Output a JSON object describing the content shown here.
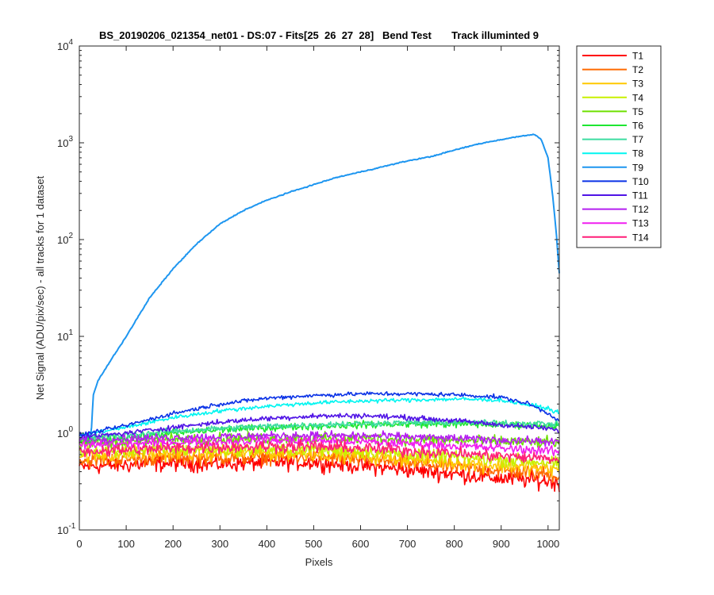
{
  "chart_data": {
    "type": "line",
    "title": "BS_20190206_021354_net01 - DS:07 - Fits[25  26  27  28]   Bend Test       Track illuminted 9",
    "xlabel": "Pixels",
    "ylabel": "Net Signal (ADU/pix/sec) - all tracks for 1 dataset",
    "x_scale": "linear",
    "y_scale": "log",
    "xlim": [
      0,
      1024
    ],
    "ylim": [
      0.1,
      10000
    ],
    "x_ticks": [
      0,
      100,
      200,
      300,
      400,
      500,
      600,
      700,
      800,
      900,
      1000
    ],
    "x_tick_labels": [
      "0",
      "100",
      "200",
      "300",
      "400",
      "500",
      "600",
      "700",
      "800",
      "900",
      "1000"
    ],
    "y_ticks": [
      {
        "value": 0.1,
        "base": "10",
        "exp": "-1"
      },
      {
        "value": 1,
        "base": "10",
        "exp": "0"
      },
      {
        "value": 10,
        "base": "10",
        "exp": "1"
      },
      {
        "value": 100,
        "base": "10",
        "exp": "2"
      },
      {
        "value": 1000,
        "base": "10",
        "exp": "3"
      },
      {
        "value": 10000,
        "base": "10",
        "exp": "4"
      }
    ],
    "grid": false,
    "legend_position": "outside-top-right",
    "series": [
      {
        "name": "T1",
        "color": "#ff0000",
        "noise": 0.16,
        "x": [
          0,
          100,
          200,
          300,
          400,
          500,
          600,
          700,
          800,
          900,
          1000,
          1024
        ],
        "y": [
          0.45,
          0.47,
          0.49,
          0.48,
          0.5,
          0.5,
          0.46,
          0.42,
          0.38,
          0.34,
          0.32,
          0.3
        ]
      },
      {
        "name": "T2",
        "color": "#ff6a00",
        "noise": 0.15,
        "x": [
          0,
          100,
          200,
          300,
          400,
          500,
          600,
          700,
          800,
          900,
          1000,
          1024
        ],
        "y": [
          0.52,
          0.54,
          0.56,
          0.56,
          0.57,
          0.57,
          0.53,
          0.49,
          0.45,
          0.41,
          0.38,
          0.36
        ]
      },
      {
        "name": "T3",
        "color": "#ffc800",
        "noise": 0.14,
        "x": [
          0,
          100,
          200,
          300,
          400,
          500,
          600,
          700,
          800,
          900,
          1000,
          1024
        ],
        "y": [
          0.58,
          0.6,
          0.62,
          0.62,
          0.62,
          0.62,
          0.58,
          0.54,
          0.5,
          0.46,
          0.43,
          0.41
        ]
      },
      {
        "name": "T4",
        "color": "#c8f000",
        "noise": 0.13,
        "x": [
          0,
          100,
          200,
          300,
          400,
          500,
          600,
          700,
          800,
          900,
          1000,
          1024
        ],
        "y": [
          0.64,
          0.66,
          0.68,
          0.68,
          0.68,
          0.68,
          0.65,
          0.61,
          0.57,
          0.53,
          0.5,
          0.48
        ]
      },
      {
        "name": "T5",
        "color": "#6ee000",
        "noise": 0.11,
        "x": [
          0,
          100,
          200,
          300,
          400,
          500,
          600,
          700,
          800,
          900,
          1000,
          1024
        ],
        "y": [
          0.78,
          0.82,
          0.86,
          0.88,
          0.88,
          0.88,
          0.88,
          0.86,
          0.84,
          0.82,
          0.8,
          0.8
        ]
      },
      {
        "name": "T6",
        "color": "#1ee632",
        "noise": 0.07,
        "x": [
          0,
          100,
          200,
          300,
          400,
          500,
          600,
          700,
          800,
          900,
          1000,
          1024
        ],
        "y": [
          0.82,
          0.9,
          1.0,
          1.08,
          1.14,
          1.18,
          1.22,
          1.24,
          1.24,
          1.22,
          1.2,
          1.2
        ]
      },
      {
        "name": "T7",
        "color": "#3cdca0",
        "noise": 0.06,
        "x": [
          0,
          100,
          200,
          300,
          400,
          500,
          600,
          700,
          800,
          900,
          1000,
          1024
        ],
        "y": [
          0.88,
          0.95,
          1.05,
          1.12,
          1.18,
          1.22,
          1.26,
          1.28,
          1.29,
          1.28,
          1.25,
          1.24
        ]
      },
      {
        "name": "T8",
        "color": "#00f5f0",
        "noise": 0.04,
        "x": [
          0,
          100,
          200,
          300,
          400,
          500,
          600,
          700,
          800,
          900,
          1000,
          1024
        ],
        "y": [
          0.95,
          1.15,
          1.45,
          1.7,
          1.9,
          2.05,
          2.15,
          2.2,
          2.25,
          2.2,
          1.8,
          1.6
        ]
      },
      {
        "name": "T9",
        "color": "#1e96f0",
        "noise": 0.01,
        "x": [
          0,
          25,
          30,
          40,
          60,
          100,
          150,
          200,
          250,
          300,
          350,
          400,
          450,
          500,
          550,
          600,
          650,
          700,
          750,
          800,
          850,
          900,
          950,
          970,
          985,
          1000,
          1010,
          1018,
          1024
        ],
        "y": [
          0.95,
          0.95,
          2.5,
          3.5,
          5.0,
          10.0,
          25.0,
          50.0,
          90.0,
          145.0,
          200.0,
          255.0,
          310.0,
          370.0,
          440.0,
          500.0,
          570.0,
          650.0,
          720.0,
          840.0,
          970.0,
          1080.0,
          1190.0,
          1220.0,
          1100.0,
          700.0,
          280.0,
          110.0,
          45.0
        ]
      },
      {
        "name": "T10",
        "color": "#0a32e6",
        "noise": 0.04,
        "x": [
          0,
          100,
          200,
          300,
          400,
          500,
          600,
          700,
          800,
          900,
          960,
          1000,
          1024
        ],
        "y": [
          0.95,
          1.2,
          1.6,
          2.0,
          2.3,
          2.45,
          2.55,
          2.55,
          2.5,
          2.35,
          2.0,
          1.6,
          1.35
        ]
      },
      {
        "name": "T11",
        "color": "#5014e6",
        "noise": 0.05,
        "x": [
          0,
          100,
          200,
          300,
          400,
          500,
          600,
          700,
          800,
          900,
          1000,
          1024
        ],
        "y": [
          0.9,
          1.0,
          1.15,
          1.3,
          1.42,
          1.5,
          1.52,
          1.45,
          1.35,
          1.22,
          1.12,
          1.05
        ]
      },
      {
        "name": "T12",
        "color": "#b41ef0",
        "noise": 0.08,
        "x": [
          0,
          100,
          200,
          300,
          400,
          500,
          600,
          700,
          800,
          900,
          1000,
          1024
        ],
        "y": [
          0.85,
          0.88,
          0.9,
          0.92,
          0.94,
          0.95,
          0.94,
          0.92,
          0.88,
          0.85,
          0.82,
          0.8
        ]
      },
      {
        "name": "T13",
        "color": "#f01ef0",
        "noise": 0.09,
        "x": [
          0,
          100,
          200,
          300,
          400,
          500,
          600,
          700,
          800,
          900,
          1000,
          1024
        ],
        "y": [
          0.75,
          0.77,
          0.8,
          0.82,
          0.84,
          0.84,
          0.82,
          0.78,
          0.74,
          0.7,
          0.66,
          0.64
        ]
      },
      {
        "name": "T14",
        "color": "#ff1e78",
        "noise": 0.12,
        "x": [
          0,
          100,
          200,
          300,
          400,
          500,
          600,
          700,
          800,
          900,
          1000,
          1024
        ],
        "y": [
          0.65,
          0.67,
          0.7,
          0.72,
          0.73,
          0.73,
          0.7,
          0.66,
          0.62,
          0.58,
          0.55,
          0.53
        ]
      }
    ]
  }
}
